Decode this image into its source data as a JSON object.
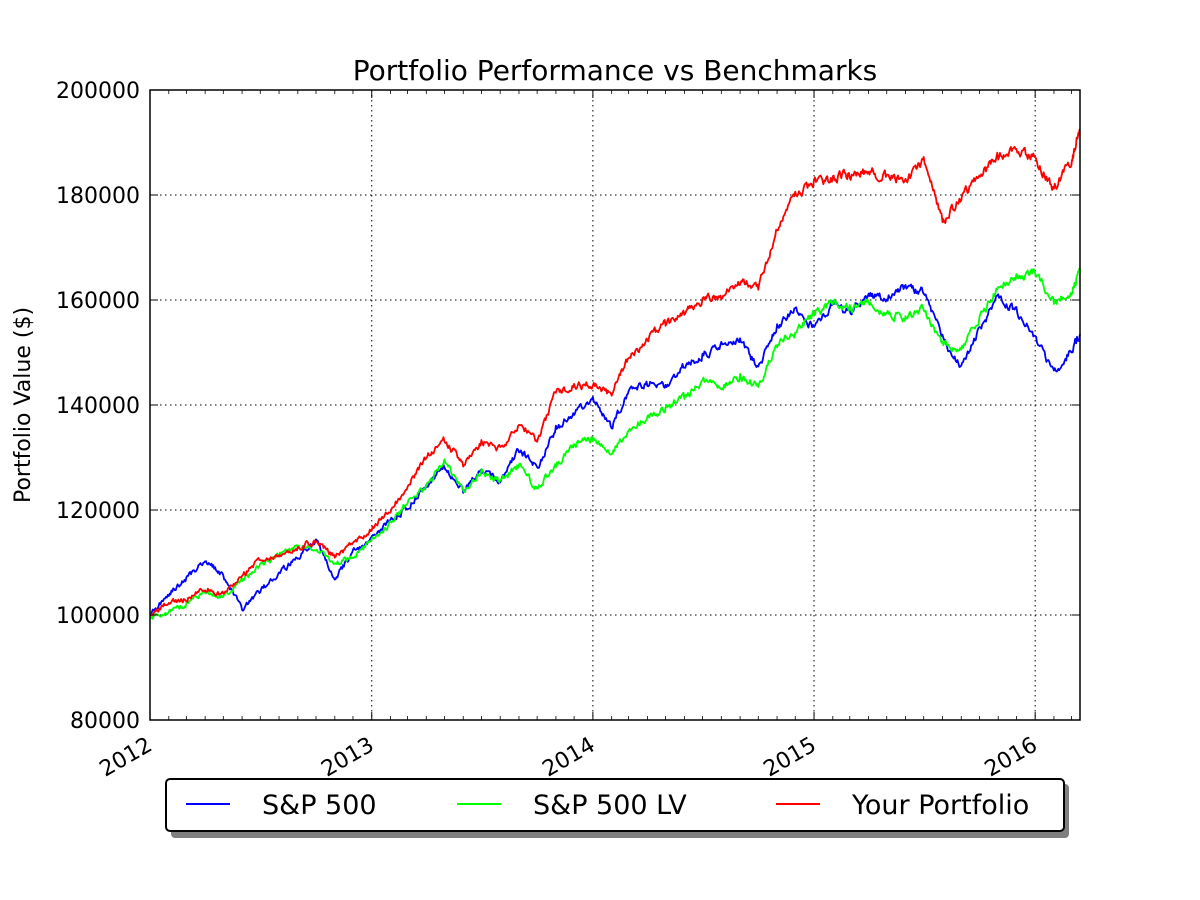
{
  "chart_data": {
    "type": "line",
    "title": "Portfolio Performance vs Benchmarks",
    "xlabel": "",
    "ylabel": "Portfolio Value ($)",
    "xlim": [
      "2012-01-01",
      "2016-03-15"
    ],
    "ylim": [
      80000,
      200000
    ],
    "x_ticks": [
      "2012",
      "2013",
      "2014",
      "2015",
      "2016"
    ],
    "y_ticks": [
      "80000",
      "100000",
      "120000",
      "140000",
      "160000",
      "180000",
      "200000"
    ],
    "grid": true,
    "legend_position": "bottom-center",
    "series": [
      {
        "name": "S&P 500",
        "color": "#0000ff",
        "x": [
          "2012-01-01",
          "2012-02-01",
          "2012-03-01",
          "2012-04-01",
          "2012-05-01",
          "2012-06-01",
          "2012-07-01",
          "2012-08-01",
          "2012-09-01",
          "2012-10-01",
          "2012-11-01",
          "2012-12-01",
          "2013-01-01",
          "2013-02-01",
          "2013-03-01",
          "2013-04-01",
          "2013-05-01",
          "2013-06-01",
          "2013-07-01",
          "2013-08-01",
          "2013-09-01",
          "2013-10-01",
          "2013-11-01",
          "2013-12-01",
          "2014-01-01",
          "2014-02-01",
          "2014-03-01",
          "2014-04-01",
          "2014-05-01",
          "2014-06-01",
          "2014-07-01",
          "2014-08-01",
          "2014-09-01",
          "2014-10-01",
          "2014-11-01",
          "2014-12-01",
          "2015-01-01",
          "2015-02-01",
          "2015-03-01",
          "2015-04-01",
          "2015-05-01",
          "2015-06-01",
          "2015-07-01",
          "2015-08-01",
          "2015-09-01",
          "2015-10-01",
          "2015-11-01",
          "2015-12-01",
          "2016-01-01",
          "2016-02-01",
          "2016-03-01",
          "2016-03-15"
        ],
        "values": [
          100000,
          104000,
          107000,
          110500,
          107500,
          101000,
          104500,
          108000,
          111000,
          114000,
          107000,
          112000,
          114500,
          118000,
          120500,
          124500,
          128500,
          123500,
          127500,
          125500,
          131500,
          128000,
          135500,
          138500,
          141000,
          136000,
          142500,
          144000,
          143500,
          147500,
          149500,
          151500,
          152500,
          147000,
          155000,
          158500,
          154500,
          159500,
          157500,
          161000,
          160500,
          162500,
          161500,
          153000,
          147000,
          154500,
          160500,
          158000,
          153000,
          146000,
          150500,
          153500
        ]
      },
      {
        "name": "S&P 500 LV",
        "color": "#00ff00",
        "x": [
          "2012-01-01",
          "2012-02-01",
          "2012-03-01",
          "2012-04-01",
          "2012-05-01",
          "2012-06-01",
          "2012-07-01",
          "2012-08-01",
          "2012-09-01",
          "2012-10-01",
          "2012-11-01",
          "2012-12-01",
          "2013-01-01",
          "2013-02-01",
          "2013-03-01",
          "2013-04-01",
          "2013-05-01",
          "2013-06-01",
          "2013-07-01",
          "2013-08-01",
          "2013-09-01",
          "2013-10-01",
          "2013-11-01",
          "2013-12-01",
          "2014-01-01",
          "2014-02-01",
          "2014-03-01",
          "2014-04-01",
          "2014-05-01",
          "2014-06-01",
          "2014-07-01",
          "2014-08-01",
          "2014-09-01",
          "2014-10-01",
          "2014-11-01",
          "2014-12-01",
          "2015-01-01",
          "2015-02-01",
          "2015-03-01",
          "2015-04-01",
          "2015-05-01",
          "2015-06-01",
          "2015-07-01",
          "2015-08-01",
          "2015-09-01",
          "2015-10-01",
          "2015-11-01",
          "2015-12-01",
          "2016-01-01",
          "2016-02-01",
          "2016-03-01",
          "2016-03-15"
        ],
        "values": [
          99500,
          100500,
          102000,
          104500,
          103500,
          106500,
          109500,
          111500,
          113000,
          112500,
          110000,
          111000,
          114000,
          117500,
          121500,
          124500,
          129500,
          123500,
          127500,
          125500,
          128500,
          124000,
          128500,
          132500,
          133500,
          131000,
          135500,
          137500,
          139500,
          141500,
          144500,
          143500,
          145500,
          143500,
          151500,
          153500,
          157500,
          159500,
          158500,
          159500,
          157500,
          156500,
          158500,
          152000,
          150500,
          156500,
          162500,
          164500,
          165500,
          159500,
          161500,
          165500
        ]
      },
      {
        "name": "Your Portfolio",
        "color": "#ff0000",
        "x": [
          "2012-01-01",
          "2012-02-01",
          "2012-03-01",
          "2012-04-01",
          "2012-05-01",
          "2012-06-01",
          "2012-07-01",
          "2012-08-01",
          "2012-09-01",
          "2012-10-01",
          "2012-11-01",
          "2012-12-01",
          "2013-01-01",
          "2013-02-01",
          "2013-03-01",
          "2013-04-01",
          "2013-05-01",
          "2013-06-01",
          "2013-07-01",
          "2013-08-01",
          "2013-09-01",
          "2013-10-01",
          "2013-11-01",
          "2013-12-01",
          "2014-01-01",
          "2014-02-01",
          "2014-03-01",
          "2014-04-01",
          "2014-05-01",
          "2014-06-01",
          "2014-07-01",
          "2014-08-01",
          "2014-09-01",
          "2014-10-01",
          "2014-11-01",
          "2014-12-01",
          "2015-01-01",
          "2015-02-01",
          "2015-03-01",
          "2015-04-01",
          "2015-05-01",
          "2015-06-01",
          "2015-07-01",
          "2015-08-01",
          "2015-09-01",
          "2015-10-01",
          "2015-11-01",
          "2015-12-01",
          "2016-01-01",
          "2016-02-01",
          "2016-03-01",
          "2016-03-15"
        ],
        "values": [
          100000,
          102500,
          103000,
          105000,
          104000,
          107500,
          110500,
          111500,
          113000,
          114000,
          111000,
          113500,
          116500,
          120000,
          124500,
          130000,
          133500,
          128500,
          133000,
          131500,
          136500,
          133000,
          142500,
          143500,
          144000,
          142000,
          149000,
          152500,
          155500,
          157500,
          160000,
          160500,
          163500,
          162500,
          173500,
          180000,
          182500,
          183000,
          184000,
          184500,
          183500,
          182500,
          186500,
          175000,
          179500,
          183500,
          187500,
          188500,
          187000,
          181000,
          186500,
          192500
        ]
      }
    ]
  }
}
